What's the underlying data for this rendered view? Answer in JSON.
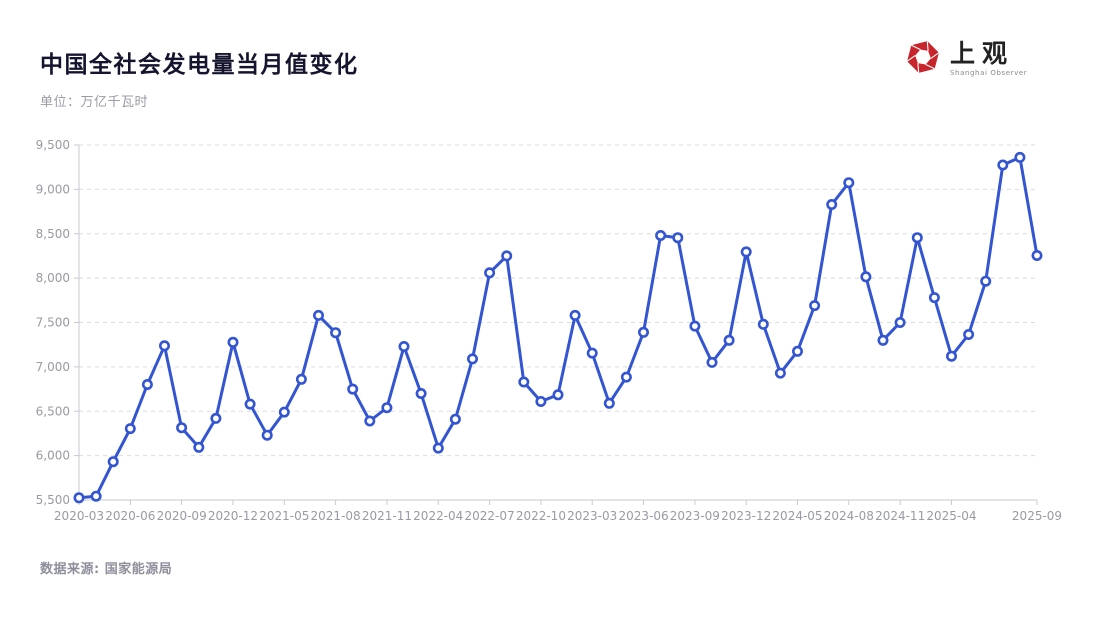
{
  "header": {
    "title": "中国全社会发电量当月值变化",
    "subtitle": "单位：万亿千瓦时",
    "logo": {
      "cn": "上观",
      "en": "Shanghai Observer",
      "brand_color": "#c8242c"
    }
  },
  "footer": {
    "source": "数据来源: 国家能源局"
  },
  "chart_data": {
    "type": "line",
    "title": "中国全社会发电量当月值变化",
    "unit_label": "单位：万亿千瓦时",
    "series_name": "全社会发电量当月值",
    "series_color": "#3355d2",
    "marker_style": "circle-white-fill-blue-stroke",
    "grid": "horizontal-dashed",
    "legend": "none",
    "ylim": [
      5500,
      9500
    ],
    "ytick_step": 500,
    "y_tick_labels": [
      "5,500",
      "6,000",
      "6,500",
      "7,000",
      "7,500",
      "8,000",
      "8,500",
      "9,000",
      "9,500"
    ],
    "x_label_indices": [
      0,
      3,
      6,
      9,
      12,
      15,
      18,
      21,
      24,
      27,
      30,
      33,
      36,
      39,
      42,
      45,
      48,
      51,
      56
    ],
    "x_tick_labels": [
      "2020-03",
      "2020-06",
      "2020-09",
      "2020-12",
      "2021-05",
      "2021-08",
      "2021-11",
      "2022-04",
      "2022-07",
      "2022-10",
      "2023-03",
      "2023-06",
      "2023-09",
      "2023-12",
      "2024-05",
      "2024-08",
      "2024-11",
      "2025-04",
      "2025-09"
    ],
    "categories": [
      "2020-03",
      "2020-04",
      "2020-05",
      "2020-06",
      "2020-07",
      "2020-08",
      "2020-09",
      "2020-10",
      "2020-11",
      "2020-12",
      "2021-03",
      "2021-04",
      "2021-05",
      "2021-06",
      "2021-07",
      "2021-08",
      "2021-09",
      "2021-10",
      "2021-11",
      "2021-12",
      "2022-03",
      "2022-04",
      "2022-05",
      "2022-06",
      "2022-07",
      "2022-08",
      "2022-09",
      "2022-10",
      "2022-11",
      "2022-12",
      "2023-03",
      "2023-04",
      "2023-05",
      "2023-06",
      "2023-07",
      "2023-08",
      "2023-09",
      "2023-10",
      "2023-11",
      "2023-12",
      "2024-03",
      "2024-04",
      "2024-05",
      "2024-06",
      "2024-07",
      "2024-08",
      "2024-09",
      "2024-10",
      "2024-11",
      "2024-12",
      "2025-03",
      "2025-04",
      "2025-05",
      "2025-06",
      "2025-07",
      "2025-08",
      "2025-09"
    ],
    "values": [
      5525,
      5543,
      5932,
      6304,
      6801,
      7238,
      6315,
      6094,
      6419,
      7277,
      6580,
      6230,
      6490,
      6860,
      7580,
      7385,
      6750,
      6390,
      6540,
      7230,
      6700,
      6085,
      6410,
      7090,
      8060,
      8250,
      6830,
      6610,
      6685,
      7580,
      7155,
      6590,
      6885,
      7390,
      8480,
      8455,
      7460,
      7050,
      7300,
      8295,
      7480,
      6930,
      7175,
      7690,
      8830,
      9075,
      8015,
      7300,
      7500,
      8455,
      7780,
      7120,
      7365,
      7965,
      9275,
      9360,
      8255
    ]
  }
}
